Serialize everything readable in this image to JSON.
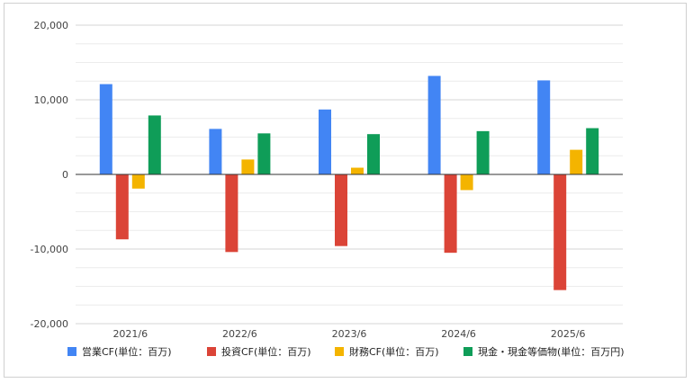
{
  "chart_data": {
    "type": "bar",
    "categories": [
      "2021/6",
      "2022/6",
      "2023/6",
      "2024/6",
      "2025/6"
    ],
    "series": [
      {
        "name": "営業CF(単位：百万)",
        "color": "#4285F4",
        "values": [
          12100,
          6100,
          8700,
          13200,
          12600
        ]
      },
      {
        "name": "投資CF(単位：百万)",
        "color": "#DB4437",
        "values": [
          -8700,
          -10400,
          -9600,
          -10500,
          -15500
        ]
      },
      {
        "name": "財務CF(単位：百万)",
        "color": "#F4B400",
        "values": [
          -1900,
          2000,
          900,
          -2100,
          3300
        ]
      },
      {
        "name": "現金・現金等価物(単位：百万円)",
        "color": "#0F9D58",
        "values": [
          7900,
          5500,
          5400,
          5800,
          6200
        ]
      }
    ],
    "yticks": [
      "20,000",
      "10,000",
      "0",
      "-10,000",
      "-20,000"
    ],
    "ylim": [
      -20000,
      20000
    ],
    "grid": true,
    "legend": "bottom"
  }
}
